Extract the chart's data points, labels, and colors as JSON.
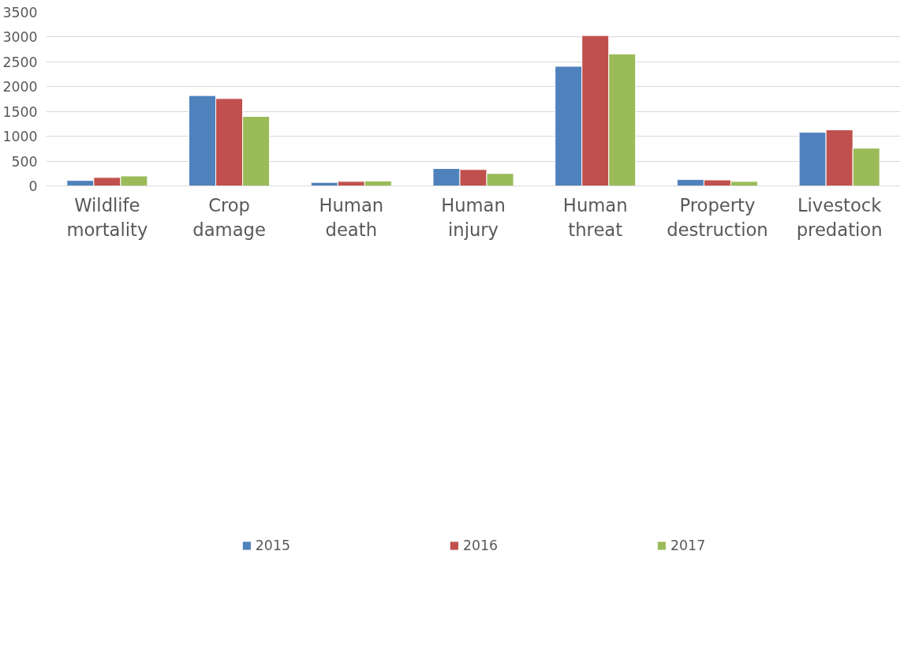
{
  "chart_data": {
    "type": "bar",
    "categories": [
      "Wildlife\nmortality",
      "Crop\ndamage",
      "Human\ndeath",
      "Human\ninjury",
      "Human\nthreat",
      "Property\ndestruction",
      "Livestock\npredation"
    ],
    "series": [
      {
        "name": "2015",
        "color": "#4f81bd",
        "values": [
          110,
          1820,
          70,
          350,
          2410,
          130,
          1080
        ]
      },
      {
        "name": "2016",
        "color": "#c0504d",
        "values": [
          170,
          1760,
          90,
          330,
          3030,
          120,
          1130
        ]
      },
      {
        "name": "2017",
        "color": "#9bbb59",
        "values": [
          200,
          1400,
          100,
          250,
          2660,
          90,
          760
        ]
      }
    ],
    "ylim": [
      0,
      3500
    ],
    "yticks": [
      0,
      500,
      1000,
      1500,
      2000,
      2500,
      3000,
      3500
    ],
    "grid": "y",
    "legend": "bottom"
  }
}
